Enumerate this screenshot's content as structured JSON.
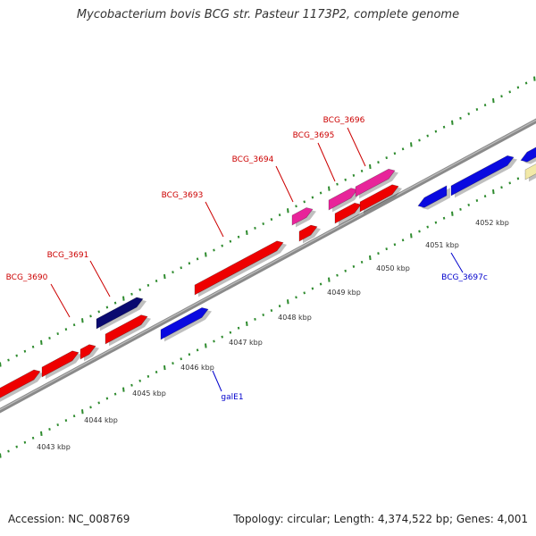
{
  "title": "Mycobacterium bovis BCG str. Pasteur 1173P2, complete genome",
  "footer": {
    "accession": "Accession: NC_008769",
    "summary": "Topology: circular; Length: 4,374,522 bp; Genes: 4,001"
  },
  "colors": {
    "backbone": "#8a8a8a",
    "tick": "#2e8b2e",
    "label_red": "#cc0000",
    "label_blue": "#0000cc",
    "feature_red": "#ee0000",
    "feature_navy": "#0a0a70",
    "feature_magenta": "#e8249a",
    "feature_blue": "#0a0ae0",
    "feature_yellow": "#f2e9a8"
  },
  "axis": {
    "kbp_labels": [
      "4043 kbp",
      "4044 kbp",
      "4045 kbp",
      "4046 kbp",
      "4047 kbp",
      "4048 kbp",
      "4049 kbp",
      "4050 kbp",
      "4051 kbp",
      "4052 kbp"
    ]
  },
  "genes": [
    {
      "name": "BCG_3690",
      "color": "label_red"
    },
    {
      "name": "BCG_3691",
      "color": "label_red"
    },
    {
      "name": "BCG_3693",
      "color": "label_red"
    },
    {
      "name": "BCG_3694",
      "color": "label_red"
    },
    {
      "name": "BCG_3695",
      "color": "label_red"
    },
    {
      "name": "BCG_3696",
      "color": "label_red"
    },
    {
      "name": "galE1",
      "color": "label_blue"
    },
    {
      "name": "BCG_3697c",
      "color": "label_blue"
    }
  ]
}
